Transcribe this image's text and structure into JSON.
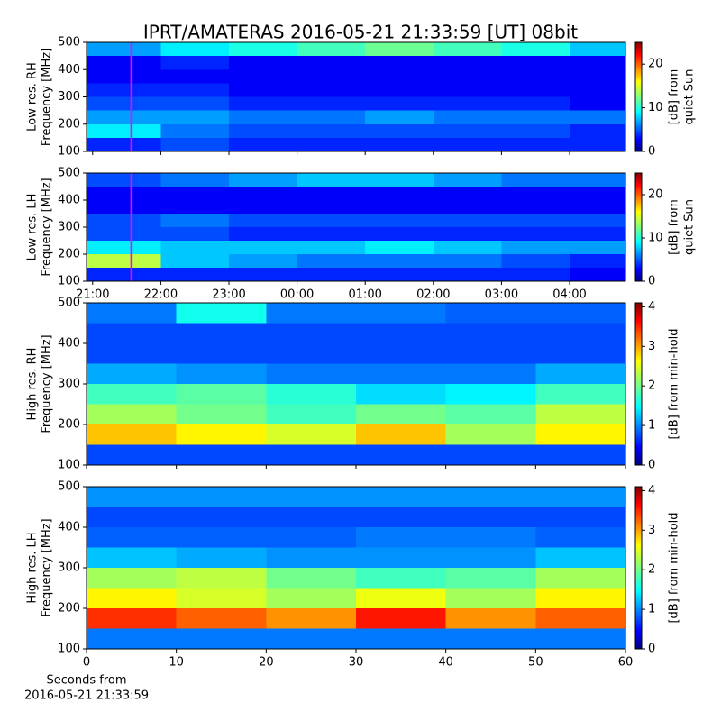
{
  "title": "IPRT/AMATERAS 2016-05-21 21:33:59 [UT]   08bit",
  "chart_data": [
    {
      "type": "heatmap",
      "ylabel": [
        "Low res. RH",
        "Frequency [MHz]"
      ],
      "colorbar_label": [
        "[dB] from",
        "quiet Sun"
      ],
      "colormap": "jet",
      "xlim": [
        20.91,
        28.82
      ],
      "ylim": [
        100,
        500
      ],
      "xticks": [
        21,
        22,
        23,
        24,
        25,
        26,
        27,
        28
      ],
      "show_xticklabels": false,
      "yticks": [
        100,
        200,
        300,
        400,
        500
      ],
      "clim": [
        0,
        25
      ],
      "cticks": [
        0,
        10,
        20
      ],
      "marker_x": 21.57,
      "marker_color": "#ff00ff",
      "xbins": [
        20.91,
        22,
        23,
        24,
        25,
        26,
        27,
        28,
        28.82
      ],
      "ybins": [
        100,
        150,
        200,
        250,
        300,
        350,
        400,
        450,
        500
      ],
      "z": [
        [
          4,
          5,
          4,
          4,
          4,
          4,
          4,
          4
        ],
        [
          9,
          6,
          5,
          5,
          5,
          5,
          5,
          4
        ],
        [
          7,
          7,
          6,
          6,
          7,
          6,
          6,
          6
        ],
        [
          5,
          5,
          4,
          4,
          4,
          4,
          4,
          3
        ],
        [
          4,
          4,
          3,
          3,
          3,
          3,
          3,
          3
        ],
        [
          3,
          3,
          3,
          3,
          3,
          3,
          3,
          3
        ],
        [
          3,
          4,
          3,
          3,
          3,
          3,
          3,
          3
        ],
        [
          7,
          9,
          10,
          11,
          12,
          11,
          10,
          8
        ]
      ]
    },
    {
      "type": "heatmap",
      "ylabel": [
        "Low res. LH",
        "Frequency [MHz]"
      ],
      "colorbar_label": [
        "[dB] from",
        "quiet Sun"
      ],
      "colormap": "jet",
      "xlim": [
        20.91,
        28.82
      ],
      "ylim": [
        100,
        500
      ],
      "xticks": [
        {
          "value": 21,
          "label": "21:00"
        },
        {
          "value": 22,
          "label": "22:00"
        },
        {
          "value": 23,
          "label": "23:00"
        },
        {
          "value": 24,
          "label": "00:00"
        },
        {
          "value": 25,
          "label": "01:00"
        },
        {
          "value": 26,
          "label": "02:00"
        },
        {
          "value": 27,
          "label": "03:00"
        },
        {
          "value": 28,
          "label": "04:00"
        }
      ],
      "show_xticklabels": true,
      "yticks": [
        100,
        200,
        300,
        400,
        500
      ],
      "clim": [
        0,
        25
      ],
      "cticks": [
        0,
        10,
        20
      ],
      "marker_x": 21.57,
      "marker_color": "#ff00ff",
      "xbins": [
        20.91,
        22,
        23,
        24,
        25,
        26,
        27,
        28,
        28.82
      ],
      "ybins": [
        100,
        150,
        200,
        250,
        300,
        350,
        400,
        450,
        500
      ],
      "z": [
        [
          4,
          4,
          4,
          4,
          4,
          4,
          4,
          3
        ],
        [
          14,
          8,
          7,
          6,
          6,
          6,
          5,
          4
        ],
        [
          9,
          8,
          8,
          8,
          9,
          8,
          7,
          7
        ],
        [
          5,
          5,
          4,
          4,
          4,
          4,
          4,
          4
        ],
        [
          5,
          6,
          5,
          5,
          5,
          5,
          5,
          5
        ],
        [
          3,
          3,
          3,
          3,
          3,
          3,
          3,
          3
        ],
        [
          3,
          3,
          3,
          3,
          3,
          3,
          3,
          3
        ],
        [
          5,
          6,
          7,
          8,
          8,
          7,
          6,
          6
        ]
      ]
    },
    {
      "type": "heatmap",
      "ylabel": [
        "High res. RH",
        "Frequency [MHz]"
      ],
      "colorbar_label": [
        "[dB] from min-hold"
      ],
      "colormap": "jet",
      "xlim": [
        0,
        60
      ],
      "ylim": [
        100,
        500
      ],
      "xticks": [
        0,
        10,
        20,
        30,
        40,
        50,
        60
      ],
      "show_xticklabels": false,
      "yticks": [
        100,
        200,
        300,
        400,
        500
      ],
      "clim": [
        0,
        4.1
      ],
      "cticks": [
        0,
        1,
        2,
        3,
        4
      ],
      "xbins": [
        0,
        10,
        20,
        30,
        40,
        50,
        60
      ],
      "ybins": [
        100,
        150,
        200,
        250,
        300,
        350,
        400,
        450,
        500
      ],
      "z": [
        [
          0.8,
          0.8,
          0.8,
          0.8,
          0.8,
          0.8
        ],
        [
          2.8,
          2.6,
          2.4,
          2.8,
          2.2,
          2.6
        ],
        [
          2.2,
          2.0,
          1.8,
          2.0,
          1.9,
          2.3
        ],
        [
          1.8,
          1.9,
          1.7,
          1.4,
          1.5,
          1.8
        ],
        [
          1.2,
          1.1,
          1.0,
          1.0,
          1.0,
          1.2
        ],
        [
          0.8,
          0.8,
          0.8,
          0.8,
          0.8,
          0.8
        ],
        [
          0.8,
          0.8,
          0.8,
          0.8,
          0.8,
          0.8
        ],
        [
          1.0,
          1.6,
          1.0,
          1.0,
          0.9,
          0.9
        ]
      ]
    },
    {
      "type": "heatmap",
      "ylabel": [
        "High res. LH",
        "Frequency [MHz]"
      ],
      "colorbar_label": [
        "[dB] from min-hold"
      ],
      "xlabel": [
        "Seconds from",
        "2016-05-21 21:33:59"
      ],
      "colormap": "jet",
      "xlim": [
        0,
        60
      ],
      "ylim": [
        100,
        500
      ],
      "xticks": [
        0,
        10,
        20,
        30,
        40,
        50,
        60
      ],
      "show_xticklabels": true,
      "yticks": [
        100,
        200,
        300,
        400,
        500
      ],
      "clim": [
        0,
        4.1
      ],
      "cticks": [
        0,
        1,
        2,
        3,
        4
      ],
      "xbins": [
        0,
        10,
        20,
        30,
        40,
        50,
        60
      ],
      "ybins": [
        100,
        150,
        200,
        250,
        300,
        350,
        400,
        450,
        500
      ],
      "z": [
        [
          1.0,
          1.0,
          1.0,
          1.0,
          1.0,
          1.0
        ],
        [
          3.4,
          3.2,
          3.0,
          3.5,
          3.0,
          3.2
        ],
        [
          2.6,
          2.4,
          2.2,
          2.5,
          2.2,
          2.6
        ],
        [
          2.2,
          2.3,
          2.0,
          1.8,
          1.9,
          2.2
        ],
        [
          1.3,
          1.2,
          1.1,
          1.1,
          1.1,
          1.3
        ],
        [
          0.9,
          0.9,
          0.9,
          1.0,
          1.0,
          0.9
        ],
        [
          0.8,
          0.8,
          0.8,
          0.8,
          0.8,
          0.8
        ],
        [
          1.1,
          1.1,
          1.1,
          1.1,
          1.1,
          1.1
        ]
      ]
    }
  ]
}
